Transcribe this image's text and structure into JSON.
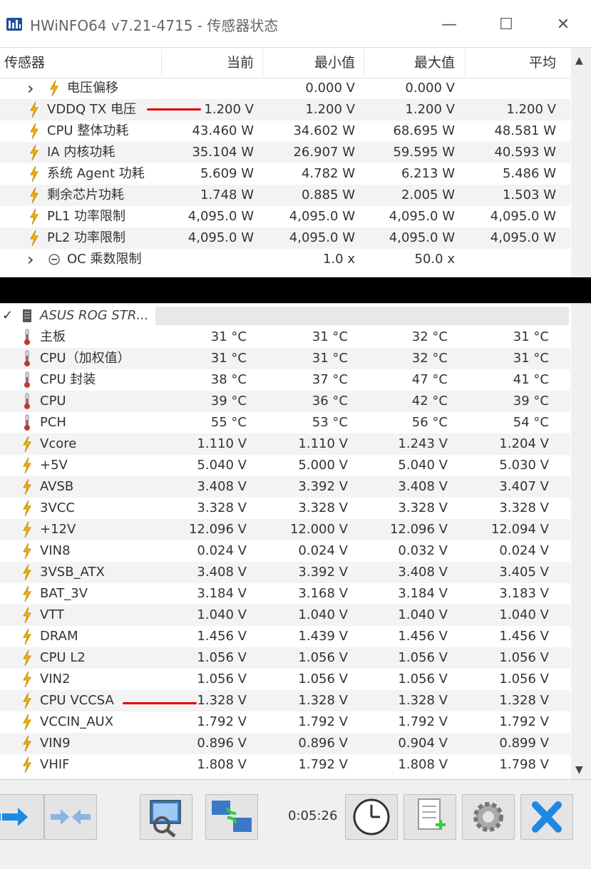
{
  "window": {
    "title": "HWiNFO64 v7.21-4715 - 传感器状态",
    "minimize": "—",
    "maximize": "☐",
    "close": "✕"
  },
  "columns": {
    "sensor": "传感器",
    "current": "当前",
    "min": "最小值",
    "max": "最大值",
    "avg": "平均"
  },
  "cpu_rows": [
    {
      "label": "电压偏移",
      "current": "",
      "min": "0.000 V",
      "max": "0.000 V",
      "avg": "",
      "icon": "bolt-icon",
      "expandable": true
    },
    {
      "label": "VDDQ TX 电压",
      "current": "1.200 V",
      "min": "1.200 V",
      "max": "1.200 V",
      "avg": "1.200 V",
      "icon": "bolt-icon"
    },
    {
      "label": "CPU 整体功耗",
      "current": "43.460 W",
      "min": "34.602 W",
      "max": "68.695 W",
      "avg": "48.581 W",
      "icon": "bolt-icon"
    },
    {
      "label": "IA 内核功耗",
      "current": "35.104 W",
      "min": "26.907 W",
      "max": "59.595 W",
      "avg": "40.593 W",
      "icon": "bolt-icon"
    },
    {
      "label": "系统 Agent 功耗",
      "current": "5.609 W",
      "min": "4.782 W",
      "max": "6.213 W",
      "avg": "5.486 W",
      "icon": "bolt-icon"
    },
    {
      "label": "剩余芯片功耗",
      "current": "1.748 W",
      "min": "0.885 W",
      "max": "2.005 W",
      "avg": "1.503 W",
      "icon": "bolt-icon"
    },
    {
      "label": "PL1 功率限制",
      "current": "4,095.0 W",
      "min": "4,095.0 W",
      "max": "4,095.0 W",
      "avg": "4,095.0 W",
      "icon": "bolt-icon"
    },
    {
      "label": "PL2 功率限制",
      "current": "4,095.0 W",
      "min": "4,095.0 W",
      "max": "4,095.0 W",
      "avg": "4,095.0 W",
      "icon": "bolt-icon"
    },
    {
      "label": "OC 乘数限制",
      "current": "",
      "min": "1.0 x",
      "max": "50.0 x",
      "avg": "",
      "icon": "clock-small-icon",
      "expandable": true
    }
  ],
  "mb_header": "ASUS ROG STR...",
  "mb_rows": [
    {
      "label": "主板",
      "current": "31 °C",
      "min": "31 °C",
      "max": "32 °C",
      "avg": "31 °C",
      "icon": "thermometer-icon"
    },
    {
      "label": "CPU（加权值）",
      "current": "31 °C",
      "min": "31 °C",
      "max": "32 °C",
      "avg": "31 °C",
      "icon": "thermometer-icon"
    },
    {
      "label": "CPU 封装",
      "current": "38 °C",
      "min": "37 °C",
      "max": "47 °C",
      "avg": "41 °C",
      "icon": "thermometer-icon"
    },
    {
      "label": "CPU",
      "current": "39 °C",
      "min": "36 °C",
      "max": "42 °C",
      "avg": "39 °C",
      "icon": "thermometer-icon"
    },
    {
      "label": "PCH",
      "current": "55 °C",
      "min": "53 °C",
      "max": "56 °C",
      "avg": "54 °C",
      "icon": "thermometer-icon"
    },
    {
      "label": "Vcore",
      "current": "1.110 V",
      "min": "1.110 V",
      "max": "1.243 V",
      "avg": "1.204 V",
      "icon": "bolt-icon"
    },
    {
      "label": "+5V",
      "current": "5.040 V",
      "min": "5.000 V",
      "max": "5.040 V",
      "avg": "5.030 V",
      "icon": "bolt-icon"
    },
    {
      "label": "AVSB",
      "current": "3.408 V",
      "min": "3.392 V",
      "max": "3.408 V",
      "avg": "3.407 V",
      "icon": "bolt-icon"
    },
    {
      "label": "3VCC",
      "current": "3.328 V",
      "min": "3.328 V",
      "max": "3.328 V",
      "avg": "3.328 V",
      "icon": "bolt-icon"
    },
    {
      "label": "+12V",
      "current": "12.096 V",
      "min": "12.000 V",
      "max": "12.096 V",
      "avg": "12.094 V",
      "icon": "bolt-icon"
    },
    {
      "label": "VIN8",
      "current": "0.024 V",
      "min": "0.024 V",
      "max": "0.032 V",
      "avg": "0.024 V",
      "icon": "bolt-icon"
    },
    {
      "label": "3VSB_ATX",
      "current": "3.408 V",
      "min": "3.392 V",
      "max": "3.408 V",
      "avg": "3.405 V",
      "icon": "bolt-icon"
    },
    {
      "label": "BAT_3V",
      "current": "3.184 V",
      "min": "3.168 V",
      "max": "3.184 V",
      "avg": "3.183 V",
      "icon": "bolt-icon"
    },
    {
      "label": "VTT",
      "current": "1.040 V",
      "min": "1.040 V",
      "max": "1.040 V",
      "avg": "1.040 V",
      "icon": "bolt-icon"
    },
    {
      "label": "DRAM",
      "current": "1.456 V",
      "min": "1.439 V",
      "max": "1.456 V",
      "avg": "1.456 V",
      "icon": "bolt-icon"
    },
    {
      "label": "CPU L2",
      "current": "1.056 V",
      "min": "1.056 V",
      "max": "1.056 V",
      "avg": "1.056 V",
      "icon": "bolt-icon"
    },
    {
      "label": "VIN2",
      "current": "1.056 V",
      "min": "1.056 V",
      "max": "1.056 V",
      "avg": "1.056 V",
      "icon": "bolt-icon"
    },
    {
      "label": "CPU VCCSA",
      "current": "1.328 V",
      "min": "1.328 V",
      "max": "1.328 V",
      "avg": "1.328 V",
      "icon": "bolt-icon"
    },
    {
      "label": "VCCIN_AUX",
      "current": "1.792 V",
      "min": "1.792 V",
      "max": "1.792 V",
      "avg": "1.792 V",
      "icon": "bolt-icon"
    },
    {
      "label": "VIN9",
      "current": "0.896 V",
      "min": "0.896 V",
      "max": "0.904 V",
      "avg": "0.899 V",
      "icon": "bolt-icon"
    },
    {
      "label": "VHIF",
      "current": "1.808 V",
      "min": "1.792 V",
      "max": "1.808 V",
      "avg": "1.798 V",
      "icon": "bolt-icon"
    }
  ],
  "toolbar": {
    "timer": "0:05:26"
  },
  "colors": {
    "bolt": "#f2b400",
    "thermo": "#c0392b",
    "annotation": "#e00000",
    "close_x": "#1e88e5"
  }
}
